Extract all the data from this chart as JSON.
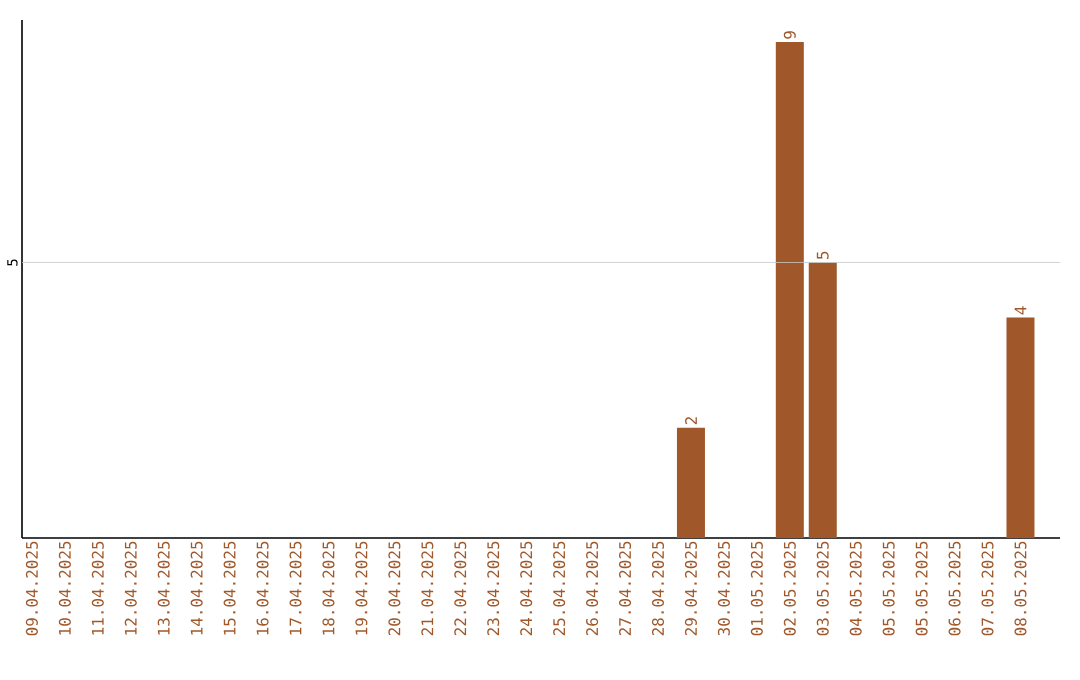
{
  "chart_data": {
    "type": "bar",
    "categories": [
      "09.04.2025",
      "10.04.2025",
      "11.04.2025",
      "12.04.2025",
      "13.04.2025",
      "14.04.2025",
      "15.04.2025",
      "16.04.2025",
      "17.04.2025",
      "18.04.2025",
      "19.04.2025",
      "20.04.2025",
      "21.04.2025",
      "22.04.2025",
      "23.04.2025",
      "24.04.2025",
      "25.04.2025",
      "26.04.2025",
      "27.04.2025",
      "28.04.2025",
      "29.04.2025",
      "30.04.2025",
      "01.05.2025",
      "02.05.2025",
      "03.05.2025",
      "04.05.2025",
      "05.05.2025",
      "05.05.2025",
      "06.05.2025",
      "07.05.2025",
      "08.05.2025"
    ],
    "values": [
      null,
      null,
      null,
      null,
      null,
      null,
      null,
      null,
      null,
      null,
      null,
      null,
      null,
      null,
      null,
      null,
      null,
      null,
      null,
      null,
      2,
      null,
      null,
      9,
      5,
      null,
      null,
      null,
      null,
      null,
      4
    ],
    "data_labels": true,
    "color": "#a0582a",
    "ylim": [
      0,
      9.4
    ],
    "ref_lines": [
      {
        "axis": "y",
        "value": 5,
        "label": "5",
        "color": "#c8c8c8"
      }
    ]
  }
}
